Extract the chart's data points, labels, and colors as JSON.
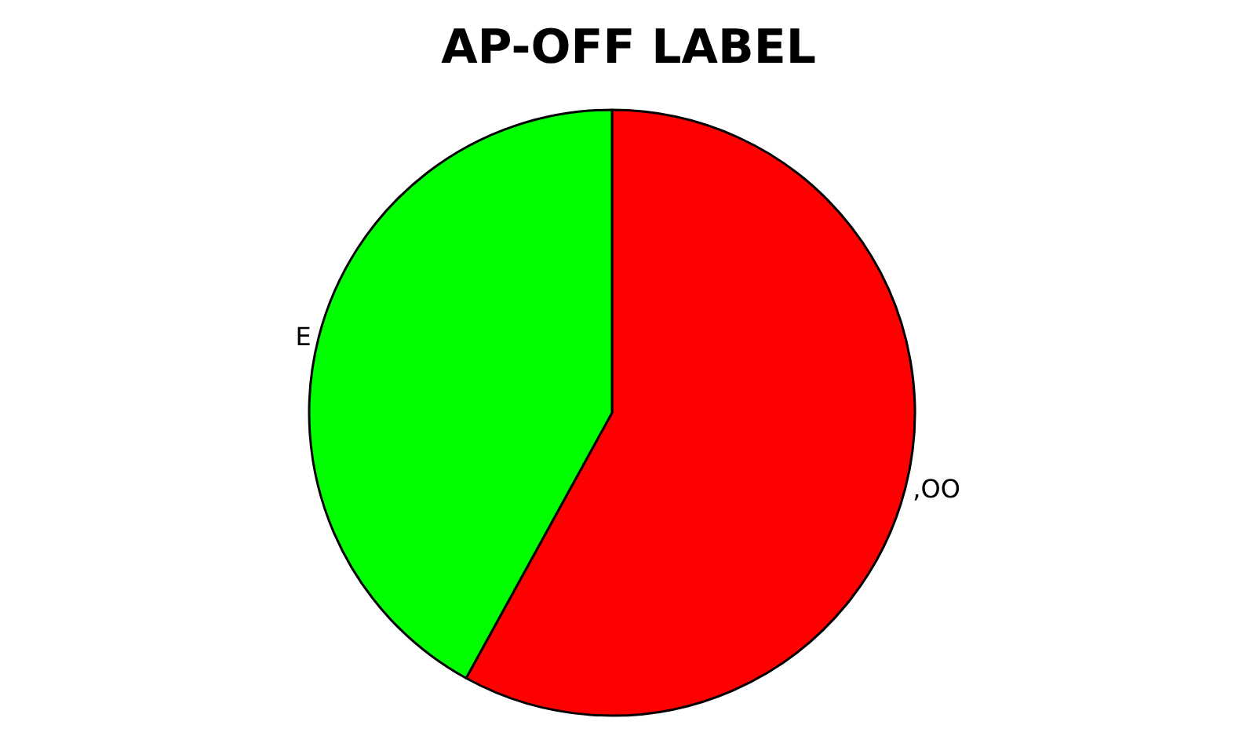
{
  "chart_data": {
    "type": "pie",
    "title": "AP-OFF LABEL",
    "categories": [
      ",OO",
      "E"
    ],
    "values": [
      58,
      42
    ],
    "colors": [
      "#ff0000",
      "#00ff00"
    ]
  }
}
